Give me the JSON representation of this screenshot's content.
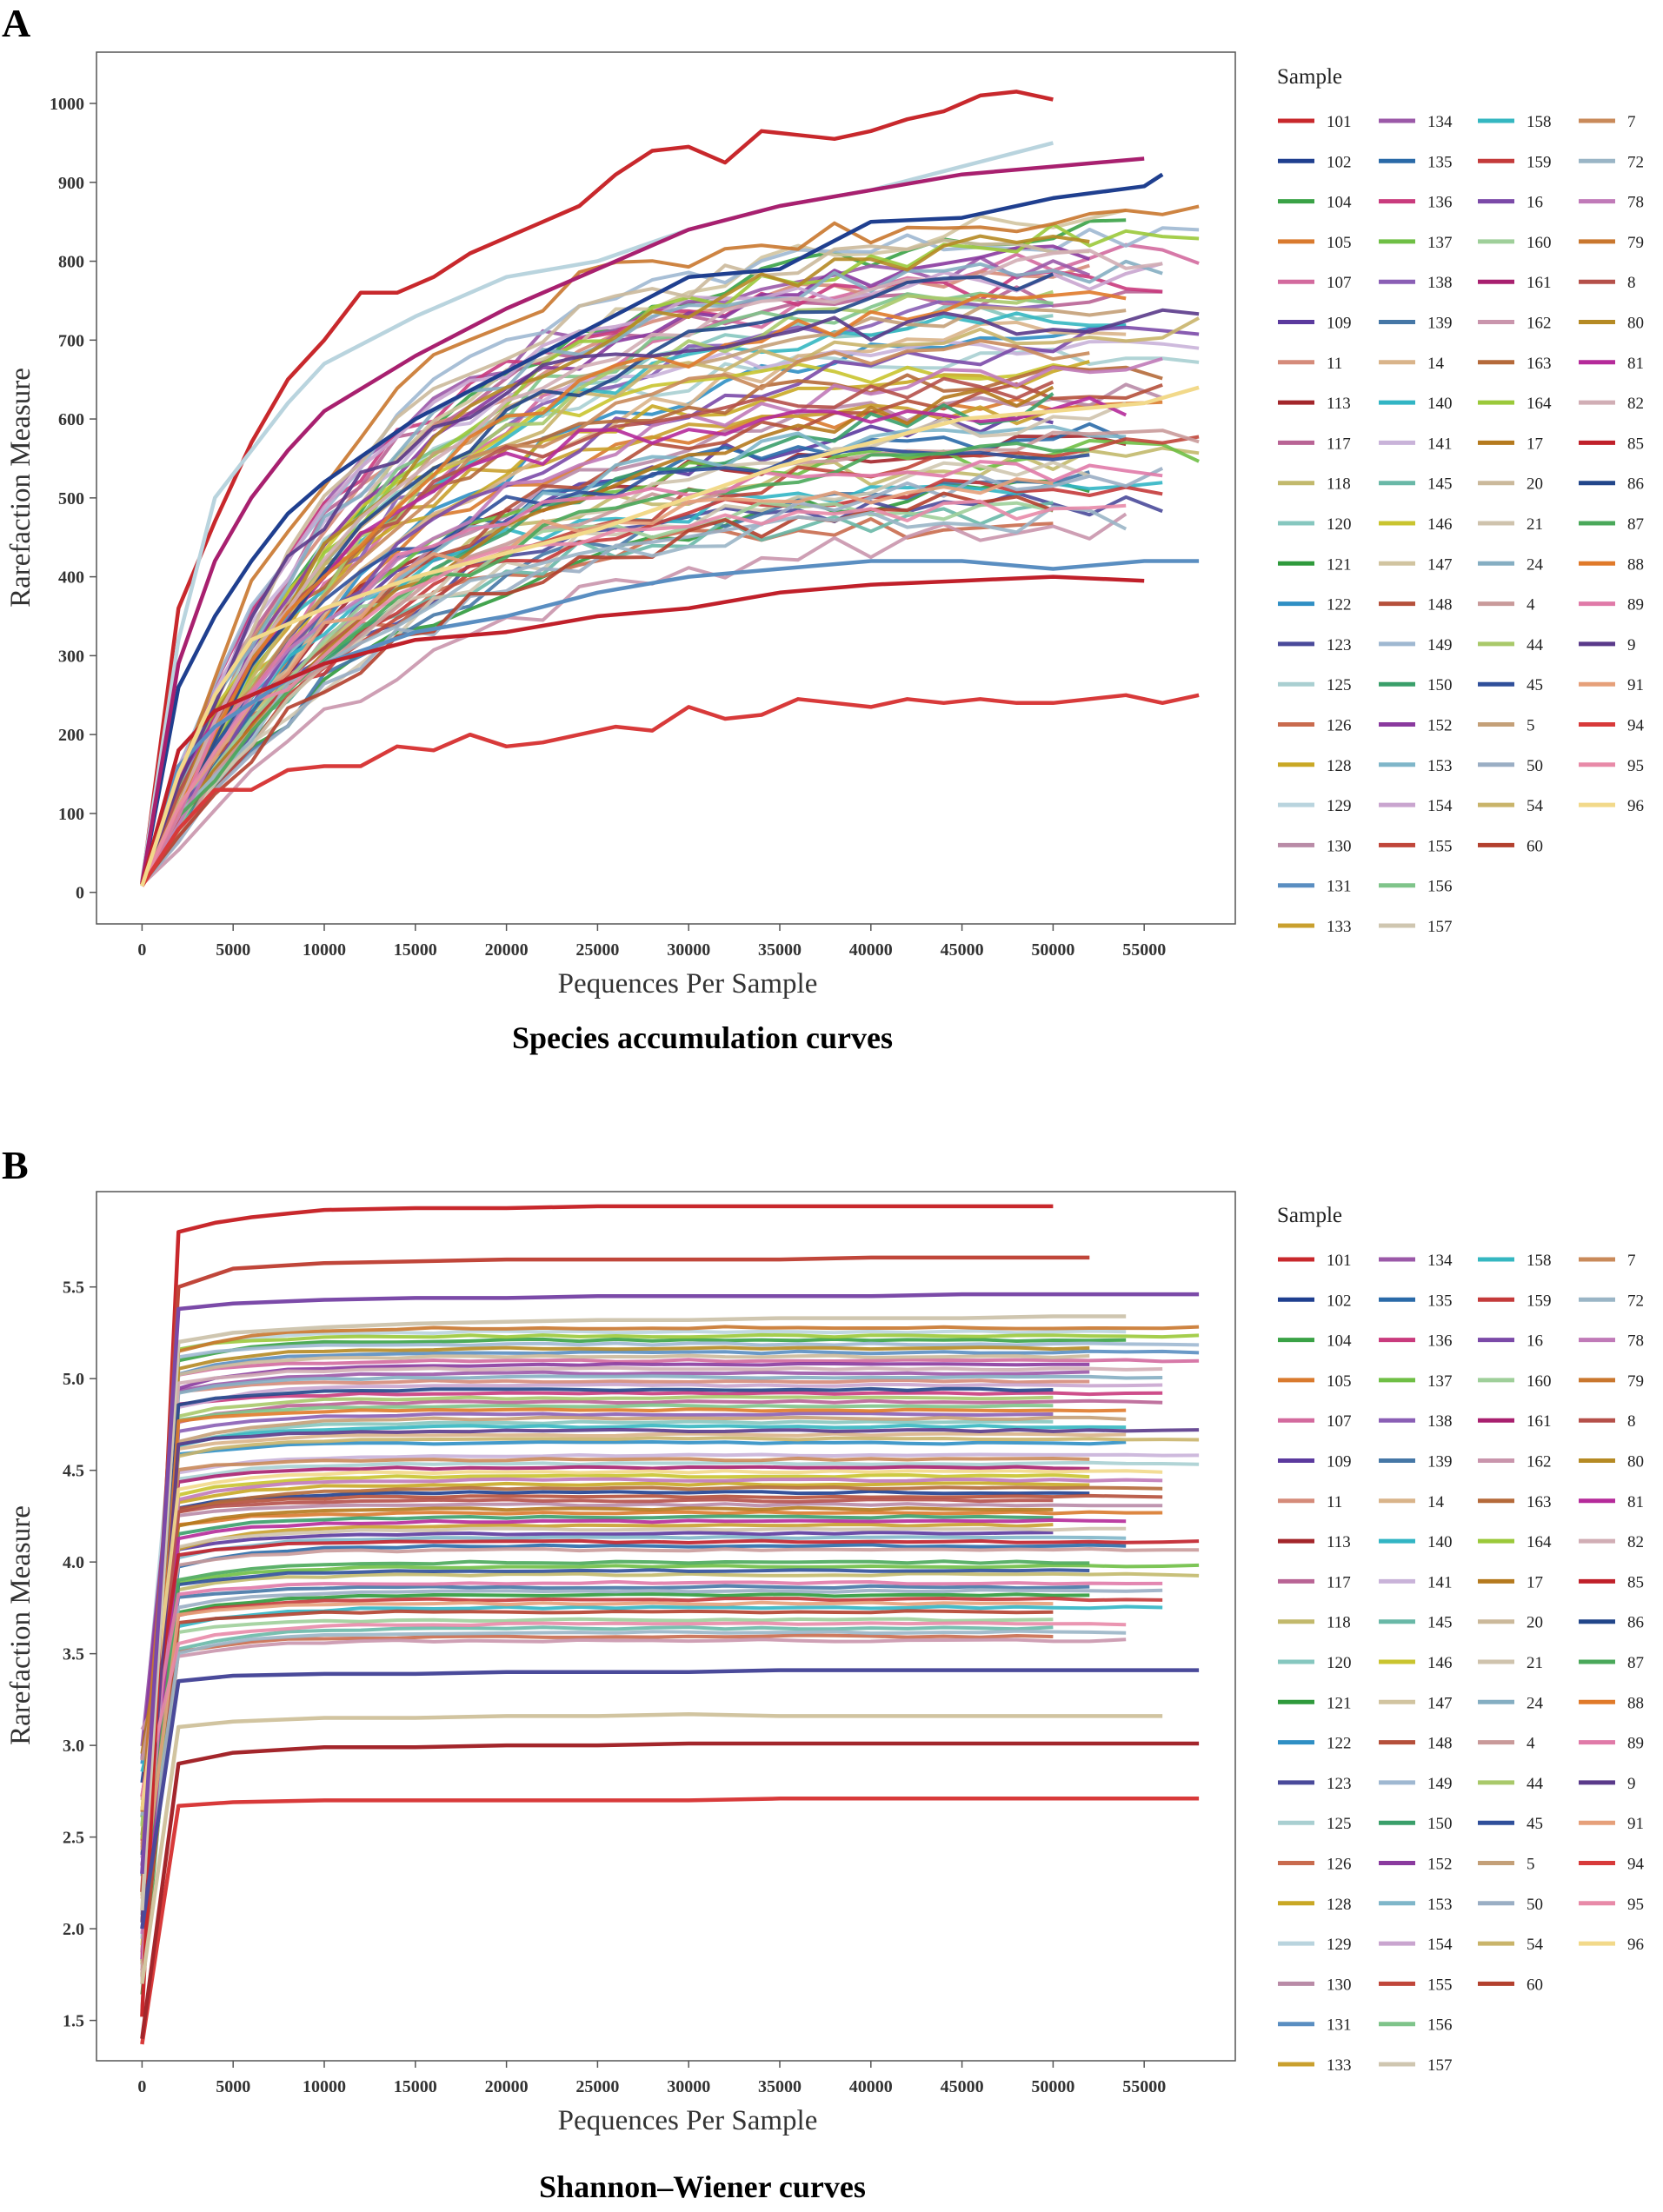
{
  "chart_data": [
    {
      "type": "line",
      "panel_letter": "A",
      "title": "Species accumulation curves",
      "xlabel": "Pequences Per Sample",
      "ylabel": "Rarefaction Measure",
      "xlim": [
        -2500,
        60000
      ],
      "ylim": [
        -40,
        1065
      ],
      "xticks": [
        0,
        5000,
        10000,
        15000,
        20000,
        25000,
        30000,
        35000,
        40000,
        45000,
        50000,
        55000
      ],
      "yticks": [
        0,
        100,
        200,
        300,
        400,
        500,
        600,
        700,
        800,
        900,
        1000
      ],
      "legend_title": "Sample",
      "legend_position": "right",
      "highlighted_series": [
        {
          "name": "101",
          "x": [
            0,
            2000,
            4000,
            6000,
            8000,
            10000,
            12000,
            14000,
            16000,
            18000,
            20000,
            22000,
            24000,
            26000,
            28000,
            30000,
            32000,
            34000,
            36000,
            38000,
            40000,
            42000,
            44000,
            46000,
            48000,
            50000
          ],
          "values": [
            10,
            360,
            470,
            570,
            650,
            700,
            760,
            760,
            780,
            810,
            830,
            850,
            870,
            910,
            940,
            945,
            925,
            965,
            960,
            955,
            965,
            980,
            990,
            1010,
            1015,
            1005
          ]
        },
        {
          "name": "102",
          "x": [
            0,
            2000,
            4000,
            6000,
            8000,
            10000,
            15000,
            20000,
            25000,
            30000,
            35000,
            40000,
            45000,
            50000,
            55000,
            56000
          ],
          "values": [
            12,
            260,
            350,
            420,
            480,
            520,
            600,
            660,
            720,
            780,
            790,
            850,
            855,
            880,
            895,
            910
          ]
        },
        {
          "name": "131",
          "x": [
            0,
            2000,
            4000,
            6000,
            8000,
            10000,
            15000,
            20000,
            25000,
            30000,
            35000,
            40000,
            45000,
            50000,
            55000,
            58000
          ],
          "values": [
            8,
            160,
            210,
            240,
            270,
            290,
            330,
            350,
            380,
            400,
            410,
            420,
            420,
            410,
            420,
            420
          ]
        },
        {
          "name": "129",
          "x": [
            0,
            2000,
            4000,
            6000,
            8000,
            10000,
            15000,
            20000,
            25000,
            30000,
            35000,
            40000,
            45000,
            50000
          ],
          "values": [
            15,
            320,
            500,
            560,
            620,
            670,
            730,
            780,
            800,
            840,
            870,
            890,
            920,
            950
          ]
        },
        {
          "name": "161",
          "x": [
            0,
            2000,
            4000,
            6000,
            8000,
            10000,
            15000,
            20000,
            25000,
            30000,
            35000,
            40000,
            45000,
            50000,
            55000
          ],
          "values": [
            12,
            290,
            420,
            500,
            560,
            610,
            680,
            740,
            790,
            840,
            870,
            890,
            910,
            920,
            930
          ]
        },
        {
          "name": "85",
          "x": [
            0,
            2000,
            4000,
            6000,
            8000,
            10000,
            15000,
            20000,
            25000,
            30000,
            35000,
            40000,
            45000,
            50000,
            55000
          ],
          "values": [
            10,
            180,
            230,
            250,
            270,
            290,
            320,
            330,
            350,
            360,
            380,
            390,
            395,
            400,
            395
          ]
        },
        {
          "name": "94",
          "x": [
            0,
            2000,
            4000,
            6000,
            8000,
            10000,
            12000,
            14000,
            16000,
            18000,
            20000,
            22000,
            24000,
            26000,
            28000,
            30000,
            32000,
            34000,
            36000,
            38000,
            40000,
            42000,
            44000,
            46000,
            48000,
            50000,
            52000,
            54000,
            56000,
            58000
          ],
          "values": [
            8,
            80,
            130,
            130,
            155,
            160,
            160,
            185,
            180,
            200,
            185,
            190,
            200,
            210,
            205,
            235,
            220,
            225,
            245,
            240,
            235,
            245,
            240,
            245,
            240,
            240,
            245,
            250,
            240,
            250
          ]
        },
        {
          "name": "96",
          "x": [
            0,
            2000,
            4000,
            6000,
            8000,
            10000,
            15000,
            20000,
            25000,
            30000,
            35000,
            40000,
            45000,
            50000,
            55000,
            58000
          ],
          "values": [
            8,
            150,
            250,
            320,
            340,
            360,
            400,
            430,
            460,
            500,
            540,
            570,
            600,
            610,
            620,
            640
          ]
        }
      ],
      "background_band": {
        "final_min": 460,
        "final_max": 860,
        "scale_min": 0.75,
        "scale_max": 1.35
      }
    },
    {
      "type": "line",
      "panel_letter": "B",
      "title": "Shannon–Wiener curves",
      "xlabel": "Pequences Per Sample",
      "ylabel": "Rarefaction Measure",
      "xlim": [
        -2500,
        60000
      ],
      "ylim": [
        1.28,
        6.02
      ],
      "xticks": [
        0,
        5000,
        10000,
        15000,
        20000,
        25000,
        30000,
        35000,
        40000,
        45000,
        50000,
        55000
      ],
      "yticks": [
        1.5,
        2.0,
        2.5,
        3.0,
        3.5,
        4.0,
        4.5,
        5.0,
        5.5
      ],
      "legend_title": "Sample",
      "legend_position": "right",
      "highlighted_series": [
        {
          "name": "101",
          "x": [
            0,
            2000,
            4000,
            6000,
            8000,
            10000,
            15000,
            20000,
            25000,
            30000,
            35000,
            40000,
            45000,
            50000
          ],
          "values": [
            1.52,
            5.8,
            5.85,
            5.88,
            5.9,
            5.92,
            5.93,
            5.93,
            5.94,
            5.94,
            5.94,
            5.94,
            5.94,
            5.94
          ]
        },
        {
          "name": "94",
          "x": [
            0,
            2000,
            5000,
            10000,
            15000,
            20000,
            25000,
            30000,
            35000,
            40000,
            45000,
            50000,
            55000,
            58000
          ],
          "values": [
            1.37,
            2.67,
            2.69,
            2.7,
            2.7,
            2.7,
            2.7,
            2.7,
            2.71,
            2.71,
            2.71,
            2.71,
            2.71,
            2.71
          ]
        },
        {
          "name": "113",
          "x": [
            0,
            2000,
            5000,
            10000,
            15000,
            20000,
            25000,
            30000,
            35000,
            40000,
            45000,
            50000,
            55000,
            58000
          ],
          "values": [
            1.4,
            2.9,
            2.96,
            2.99,
            2.99,
            3.0,
            3.0,
            3.01,
            3.01,
            3.01,
            3.01,
            3.01,
            3.01,
            3.01
          ]
        },
        {
          "name": "147",
          "x": [
            0,
            2000,
            5000,
            10000,
            15000,
            20000,
            25000,
            30000,
            35000,
            40000,
            45000,
            50000,
            56000
          ],
          "values": [
            1.7,
            3.1,
            3.13,
            3.15,
            3.15,
            3.16,
            3.16,
            3.17,
            3.16,
            3.16,
            3.16,
            3.16,
            3.16
          ]
        },
        {
          "name": "123",
          "x": [
            0,
            2000,
            5000,
            10000,
            15000,
            20000,
            25000,
            30000,
            35000,
            40000,
            45000,
            50000,
            55000,
            58000
          ],
          "values": [
            2.0,
            3.35,
            3.38,
            3.39,
            3.39,
            3.4,
            3.4,
            3.4,
            3.41,
            3.41,
            3.41,
            3.41,
            3.41,
            3.41
          ]
        },
        {
          "name": "155",
          "x": [
            0,
            2000,
            5000,
            10000,
            15000,
            20000,
            25000,
            30000,
            35000,
            40000,
            45000,
            50000,
            52000
          ],
          "values": [
            2.2,
            5.5,
            5.6,
            5.63,
            5.64,
            5.65,
            5.65,
            5.65,
            5.65,
            5.66,
            5.66,
            5.66,
            5.66
          ]
        },
        {
          "name": "157",
          "x": [
            0,
            2000,
            5000,
            10000,
            15000,
            20000,
            25000,
            30000,
            35000,
            40000,
            45000,
            50000,
            54000
          ],
          "values": [
            2.1,
            5.2,
            5.25,
            5.28,
            5.3,
            5.31,
            5.32,
            5.32,
            5.33,
            5.33,
            5.33,
            5.34,
            5.34
          ]
        },
        {
          "name": "16",
          "x": [
            0,
            2000,
            5000,
            10000,
            15000,
            20000,
            25000,
            30000,
            35000,
            40000,
            45000,
            50000,
            55000,
            58000
          ],
          "values": [
            2.3,
            5.38,
            5.41,
            5.43,
            5.44,
            5.44,
            5.45,
            5.45,
            5.45,
            5.45,
            5.46,
            5.46,
            5.46,
            5.46
          ]
        }
      ],
      "background_band": {
        "final_min": 3.55,
        "final_max": 5.3
      }
    }
  ],
  "legend": {
    "title": "Sample",
    "entries": [
      {
        "label": "101",
        "color": "#c8282c"
      },
      {
        "label": "102",
        "color": "#1f3f8f"
      },
      {
        "label": "104",
        "color": "#3aa246"
      },
      {
        "label": "105",
        "color": "#d97a2e"
      },
      {
        "label": "107",
        "color": "#d36a9e"
      },
      {
        "label": "109",
        "color": "#5b3a9e"
      },
      {
        "label": "11",
        "color": "#d58b7a"
      },
      {
        "label": "113",
        "color": "#a3262b"
      },
      {
        "label": "117",
        "color": "#b96495"
      },
      {
        "label": "118",
        "color": "#c2b96c"
      },
      {
        "label": "120",
        "color": "#86c7bf"
      },
      {
        "label": "121",
        "color": "#2f9a3c"
      },
      {
        "label": "122",
        "color": "#2f8fc4"
      },
      {
        "label": "123",
        "color": "#4a4a9a"
      },
      {
        "label": "125",
        "color": "#a9cfd1"
      },
      {
        "label": "126",
        "color": "#c96b4e"
      },
      {
        "label": "128",
        "color": "#c9a825"
      },
      {
        "label": "129",
        "color": "#b9d4de"
      },
      {
        "label": "130",
        "color": "#b98ba7"
      },
      {
        "label": "131",
        "color": "#5a8ec1"
      },
      {
        "label": "133",
        "color": "#c9a02e"
      },
      {
        "label": "134",
        "color": "#9b59a8"
      },
      {
        "label": "135",
        "color": "#2a6aa8"
      },
      {
        "label": "136",
        "color": "#c93b7d"
      },
      {
        "label": "137",
        "color": "#6fbf45"
      },
      {
        "label": "138",
        "color": "#8a5fb5"
      },
      {
        "label": "139",
        "color": "#4577a6"
      },
      {
        "label": "14",
        "color": "#d9b48a"
      },
      {
        "label": "140",
        "color": "#32b5c4"
      },
      {
        "label": "141",
        "color": "#c9b3d9"
      },
      {
        "label": "145",
        "color": "#69b8a7"
      },
      {
        "label": "146",
        "color": "#c9c42f"
      },
      {
        "label": "147",
        "color": "#d1c4a0"
      },
      {
        "label": "148",
        "color": "#b5503b"
      },
      {
        "label": "149",
        "color": "#9fb8d1"
      },
      {
        "label": "150",
        "color": "#3a9f6a"
      },
      {
        "label": "152",
        "color": "#8a3a9e"
      },
      {
        "label": "153",
        "color": "#7fb6c9"
      },
      {
        "label": "154",
        "color": "#c9a5cf"
      },
      {
        "label": "155",
        "color": "#c0463a"
      },
      {
        "label": "156",
        "color": "#7fc48a"
      },
      {
        "label": "157",
        "color": "#cfc6b0"
      },
      {
        "label": "158",
        "color": "#35b7c1"
      },
      {
        "label": "159",
        "color": "#c43a3a"
      },
      {
        "label": "16",
        "color": "#7b4aa8"
      },
      {
        "label": "160",
        "color": "#9fcf9a"
      },
      {
        "label": "161",
        "color": "#a8206f"
      },
      {
        "label": "162",
        "color": "#c995ac"
      },
      {
        "label": "163",
        "color": "#b56a3a"
      },
      {
        "label": "164",
        "color": "#9bc93a"
      },
      {
        "label": "17",
        "color": "#b57a1e"
      },
      {
        "label": "20",
        "color": "#cbb99b"
      },
      {
        "label": "21",
        "color": "#cfc3ad"
      },
      {
        "label": "24",
        "color": "#85aec2"
      },
      {
        "label": "4",
        "color": "#c99a9a"
      },
      {
        "label": "44",
        "color": "#a9c96a"
      },
      {
        "label": "45",
        "color": "#2f4f9a"
      },
      {
        "label": "5",
        "color": "#c4a078"
      },
      {
        "label": "50",
        "color": "#9aaec4"
      },
      {
        "label": "54",
        "color": "#c9b46a"
      },
      {
        "label": "60",
        "color": "#b3402e"
      },
      {
        "label": "7",
        "color": "#c98a5a"
      },
      {
        "label": "72",
        "color": "#9ab5c6"
      },
      {
        "label": "78",
        "color": "#c07ab8"
      },
      {
        "label": "79",
        "color": "#c9772e"
      },
      {
        "label": "8",
        "color": "#b5504a"
      },
      {
        "label": "80",
        "color": "#b58a24"
      },
      {
        "label": "81",
        "color": "#b52a9a"
      },
      {
        "label": "82",
        "color": "#d1aeb5"
      },
      {
        "label": "85",
        "color": "#c0202a"
      },
      {
        "label": "86",
        "color": "#22468a"
      },
      {
        "label": "87",
        "color": "#4aa85a"
      },
      {
        "label": "88",
        "color": "#e07a2a"
      },
      {
        "label": "89",
        "color": "#e07aa8"
      },
      {
        "label": "9",
        "color": "#5a3a8a"
      },
      {
        "label": "91",
        "color": "#e6a07a"
      },
      {
        "label": "94",
        "color": "#d83a3a"
      },
      {
        "label": "95",
        "color": "#e88aa8"
      },
      {
        "label": "96",
        "color": "#f2d98a"
      }
    ]
  }
}
